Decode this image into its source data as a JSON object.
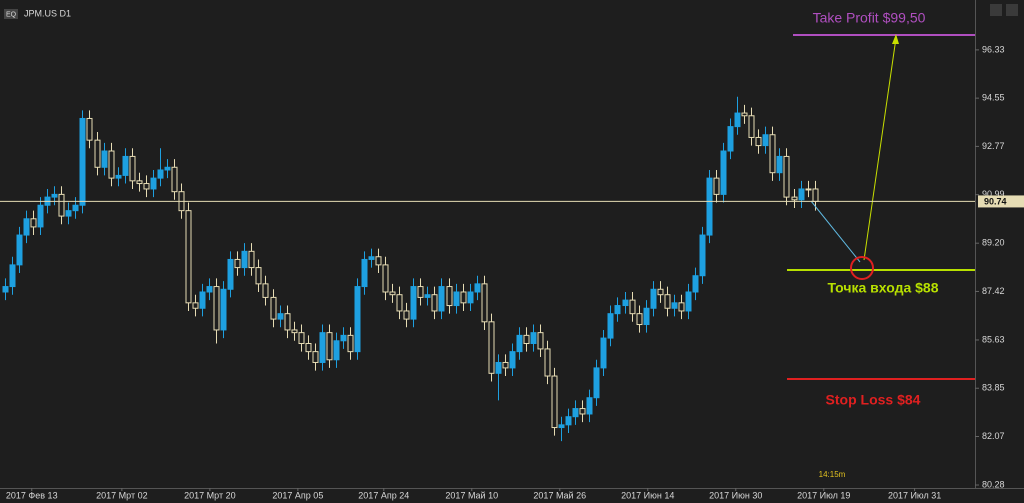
{
  "symbol_badge": "EQ",
  "symbol": "JPM.US D1",
  "timer": "14:15m",
  "chart_data": {
    "type": "candlestick",
    "candles": [
      [
        87.4,
        87.9,
        87.1,
        87.6
      ],
      [
        87.6,
        88.7,
        87.3,
        88.4
      ],
      [
        88.4,
        89.8,
        88.1,
        89.5
      ],
      [
        89.5,
        90.4,
        89.2,
        90.1
      ],
      [
        90.1,
        90.4,
        89.5,
        89.8
      ],
      [
        89.8,
        90.9,
        89.5,
        90.6
      ],
      [
        90.6,
        91.2,
        90.3,
        90.9
      ],
      [
        90.9,
        91.3,
        90.6,
        91.0
      ],
      [
        91.0,
        91.3,
        89.9,
        90.2
      ],
      [
        90.2,
        90.7,
        89.9,
        90.4
      ],
      [
        90.4,
        90.9,
        90.1,
        90.6
      ],
      [
        90.6,
        94.1,
        90.3,
        93.8
      ],
      [
        93.8,
        94.1,
        92.7,
        93.0
      ],
      [
        93.0,
        93.3,
        91.7,
        92.0
      ],
      [
        92.0,
        92.9,
        91.7,
        92.6
      ],
      [
        92.6,
        92.9,
        91.3,
        91.6
      ],
      [
        91.6,
        92.0,
        91.3,
        91.7
      ],
      [
        91.7,
        92.7,
        91.4,
        92.4
      ],
      [
        92.4,
        92.7,
        91.2,
        91.5
      ],
      [
        91.5,
        91.8,
        91.1,
        91.4
      ],
      [
        91.4,
        91.7,
        90.9,
        91.2
      ],
      [
        91.2,
        91.9,
        90.9,
        91.6
      ],
      [
        91.6,
        92.7,
        91.3,
        91.9
      ],
      [
        91.9,
        92.3,
        91.6,
        92.0
      ],
      [
        92.0,
        92.3,
        90.8,
        91.1
      ],
      [
        91.1,
        91.4,
        90.1,
        90.4
      ],
      [
        90.4,
        90.7,
        86.7,
        87.0
      ],
      [
        87.0,
        87.3,
        86.5,
        86.8
      ],
      [
        86.8,
        87.7,
        86.5,
        87.4
      ],
      [
        87.4,
        87.9,
        87.1,
        87.6
      ],
      [
        87.6,
        87.9,
        85.5,
        86.0
      ],
      [
        86.0,
        87.8,
        85.7,
        87.5
      ],
      [
        87.5,
        88.9,
        87.2,
        88.6
      ],
      [
        88.6,
        88.9,
        88.0,
        88.3
      ],
      [
        88.3,
        89.2,
        88.0,
        88.9
      ],
      [
        88.9,
        89.2,
        88.0,
        88.3
      ],
      [
        88.3,
        88.6,
        87.4,
        87.7
      ],
      [
        87.7,
        88.0,
        86.9,
        87.2
      ],
      [
        87.2,
        87.5,
        86.1,
        86.4
      ],
      [
        86.4,
        86.9,
        86.1,
        86.6
      ],
      [
        86.6,
        86.9,
        85.7,
        86.0
      ],
      [
        86.0,
        86.3,
        85.6,
        85.9
      ],
      [
        85.9,
        86.2,
        85.2,
        85.5
      ],
      [
        85.5,
        85.8,
        84.9,
        85.2
      ],
      [
        85.2,
        85.5,
        84.5,
        84.8
      ],
      [
        84.8,
        86.2,
        84.5,
        85.9
      ],
      [
        85.9,
        86.2,
        84.6,
        84.9
      ],
      [
        84.9,
        85.9,
        84.6,
        85.6
      ],
      [
        85.6,
        86.1,
        85.3,
        85.8
      ],
      [
        85.8,
        86.1,
        84.9,
        85.2
      ],
      [
        85.2,
        87.9,
        84.9,
        87.6
      ],
      [
        87.6,
        88.9,
        87.3,
        88.6
      ],
      [
        88.6,
        89.0,
        88.3,
        88.7
      ],
      [
        88.7,
        89.0,
        88.1,
        88.4
      ],
      [
        88.4,
        88.7,
        87.1,
        87.4
      ],
      [
        87.4,
        87.7,
        87.0,
        87.3
      ],
      [
        87.3,
        87.6,
        86.4,
        86.7
      ],
      [
        86.7,
        87.0,
        86.1,
        86.4
      ],
      [
        86.4,
        87.9,
        86.1,
        87.6
      ],
      [
        87.6,
        87.9,
        86.9,
        87.2
      ],
      [
        87.2,
        87.6,
        86.9,
        87.3
      ],
      [
        87.3,
        87.6,
        86.4,
        86.7
      ],
      [
        86.7,
        87.9,
        86.4,
        87.6
      ],
      [
        87.6,
        87.9,
        86.6,
        86.9
      ],
      [
        86.9,
        87.7,
        86.6,
        87.4
      ],
      [
        87.4,
        87.7,
        86.7,
        87.0
      ],
      [
        87.0,
        87.7,
        86.7,
        87.4
      ],
      [
        87.4,
        88.0,
        87.1,
        87.7
      ],
      [
        87.7,
        88.0,
        86.0,
        86.3
      ],
      [
        86.3,
        86.6,
        84.1,
        84.4
      ],
      [
        84.4,
        85.1,
        83.4,
        84.8
      ],
      [
        84.8,
        85.1,
        84.3,
        84.6
      ],
      [
        84.6,
        85.5,
        84.3,
        85.2
      ],
      [
        85.2,
        86.1,
        84.9,
        85.8
      ],
      [
        85.8,
        86.1,
        85.2,
        85.5
      ],
      [
        85.5,
        86.2,
        85.2,
        85.9
      ],
      [
        85.9,
        86.2,
        85.0,
        85.3
      ],
      [
        85.3,
        85.6,
        84.0,
        84.3
      ],
      [
        84.3,
        84.6,
        82.1,
        82.4
      ],
      [
        82.4,
        82.8,
        81.9,
        82.5
      ],
      [
        82.5,
        83.1,
        82.2,
        82.8
      ],
      [
        82.8,
        83.4,
        82.5,
        83.1
      ],
      [
        83.1,
        83.4,
        82.6,
        82.9
      ],
      [
        82.9,
        83.8,
        82.6,
        83.5
      ],
      [
        83.5,
        84.9,
        83.2,
        84.6
      ],
      [
        84.6,
        86.0,
        84.3,
        85.7
      ],
      [
        85.7,
        86.9,
        85.4,
        86.6
      ],
      [
        86.6,
        87.2,
        86.3,
        86.9
      ],
      [
        86.9,
        87.4,
        86.6,
        87.1
      ],
      [
        87.1,
        87.4,
        86.3,
        86.6
      ],
      [
        86.6,
        86.9,
        85.9,
        86.2
      ],
      [
        86.2,
        87.1,
        85.9,
        86.8
      ],
      [
        86.8,
        87.8,
        86.5,
        87.5
      ],
      [
        87.5,
        87.8,
        87.0,
        87.3
      ],
      [
        87.3,
        87.6,
        86.5,
        86.8
      ],
      [
        86.8,
        87.3,
        86.5,
        87.0
      ],
      [
        87.0,
        87.3,
        86.4,
        86.7
      ],
      [
        86.7,
        87.7,
        86.4,
        87.4
      ],
      [
        87.4,
        88.3,
        87.1,
        88.0
      ],
      [
        88.0,
        89.8,
        87.7,
        89.5
      ],
      [
        89.5,
        91.9,
        89.2,
        91.6
      ],
      [
        91.6,
        91.9,
        90.7,
        91.0
      ],
      [
        91.0,
        92.9,
        90.7,
        92.6
      ],
      [
        92.6,
        93.8,
        92.3,
        93.5
      ],
      [
        93.5,
        94.6,
        93.2,
        94.0
      ],
      [
        94.0,
        94.3,
        93.6,
        93.9
      ],
      [
        93.9,
        94.2,
        92.8,
        93.1
      ],
      [
        93.1,
        93.4,
        92.5,
        92.8
      ],
      [
        92.8,
        93.5,
        92.5,
        93.2
      ],
      [
        93.2,
        93.5,
        91.5,
        91.8
      ],
      [
        91.8,
        92.7,
        91.5,
        92.4
      ],
      [
        92.4,
        92.7,
        90.6,
        90.9
      ],
      [
        90.9,
        91.2,
        90.5,
        90.8
      ],
      [
        90.8,
        91.5,
        90.5,
        91.2
      ],
      [
        91.2,
        91.5,
        90.9,
        91.2
      ],
      [
        91.2,
        91.5,
        90.4,
        90.74
      ]
    ],
    "up_color": "#1ea0e0",
    "down_color": "#e6dcb4",
    "last_price": 90.74,
    "xlim": [
      -0.71,
      137.78
    ],
    "xticks": [
      {
        "value": 3.8,
        "label": "2017 Фев 13"
      },
      {
        "value": 16.6,
        "label": "2017 Мрт 02"
      },
      {
        "value": 29.1,
        "label": "2017 Мрт 20"
      },
      {
        "value": 41.6,
        "label": "2017 Апр 05"
      },
      {
        "value": 53.8,
        "label": "2017 Апр 24"
      },
      {
        "value": 66.3,
        "label": "2017 Май 10"
      },
      {
        "value": 78.8,
        "label": "2017 Май 26"
      },
      {
        "value": 91.3,
        "label": "2017 Июн 14"
      },
      {
        "value": 103.8,
        "label": "2017 Июн 30"
      },
      {
        "value": 116.3,
        "label": "2017 Июл 19"
      },
      {
        "value": 129.2,
        "label": "2017 Июл 31"
      }
    ],
    "ylim": [
      80.17,
      98.17
    ],
    "yticks": [
      96.33,
      94.55,
      92.77,
      90.99,
      {
        "value": 89.2,
        "label": "89.20"
      },
      87.42,
      85.63,
      83.85,
      82.07,
      80.28
    ],
    "annotations": {
      "take_profit": "Take Profit $99,50",
      "entry": "Точка входа $88",
      "stop_loss": "Stop Loss $84"
    }
  }
}
